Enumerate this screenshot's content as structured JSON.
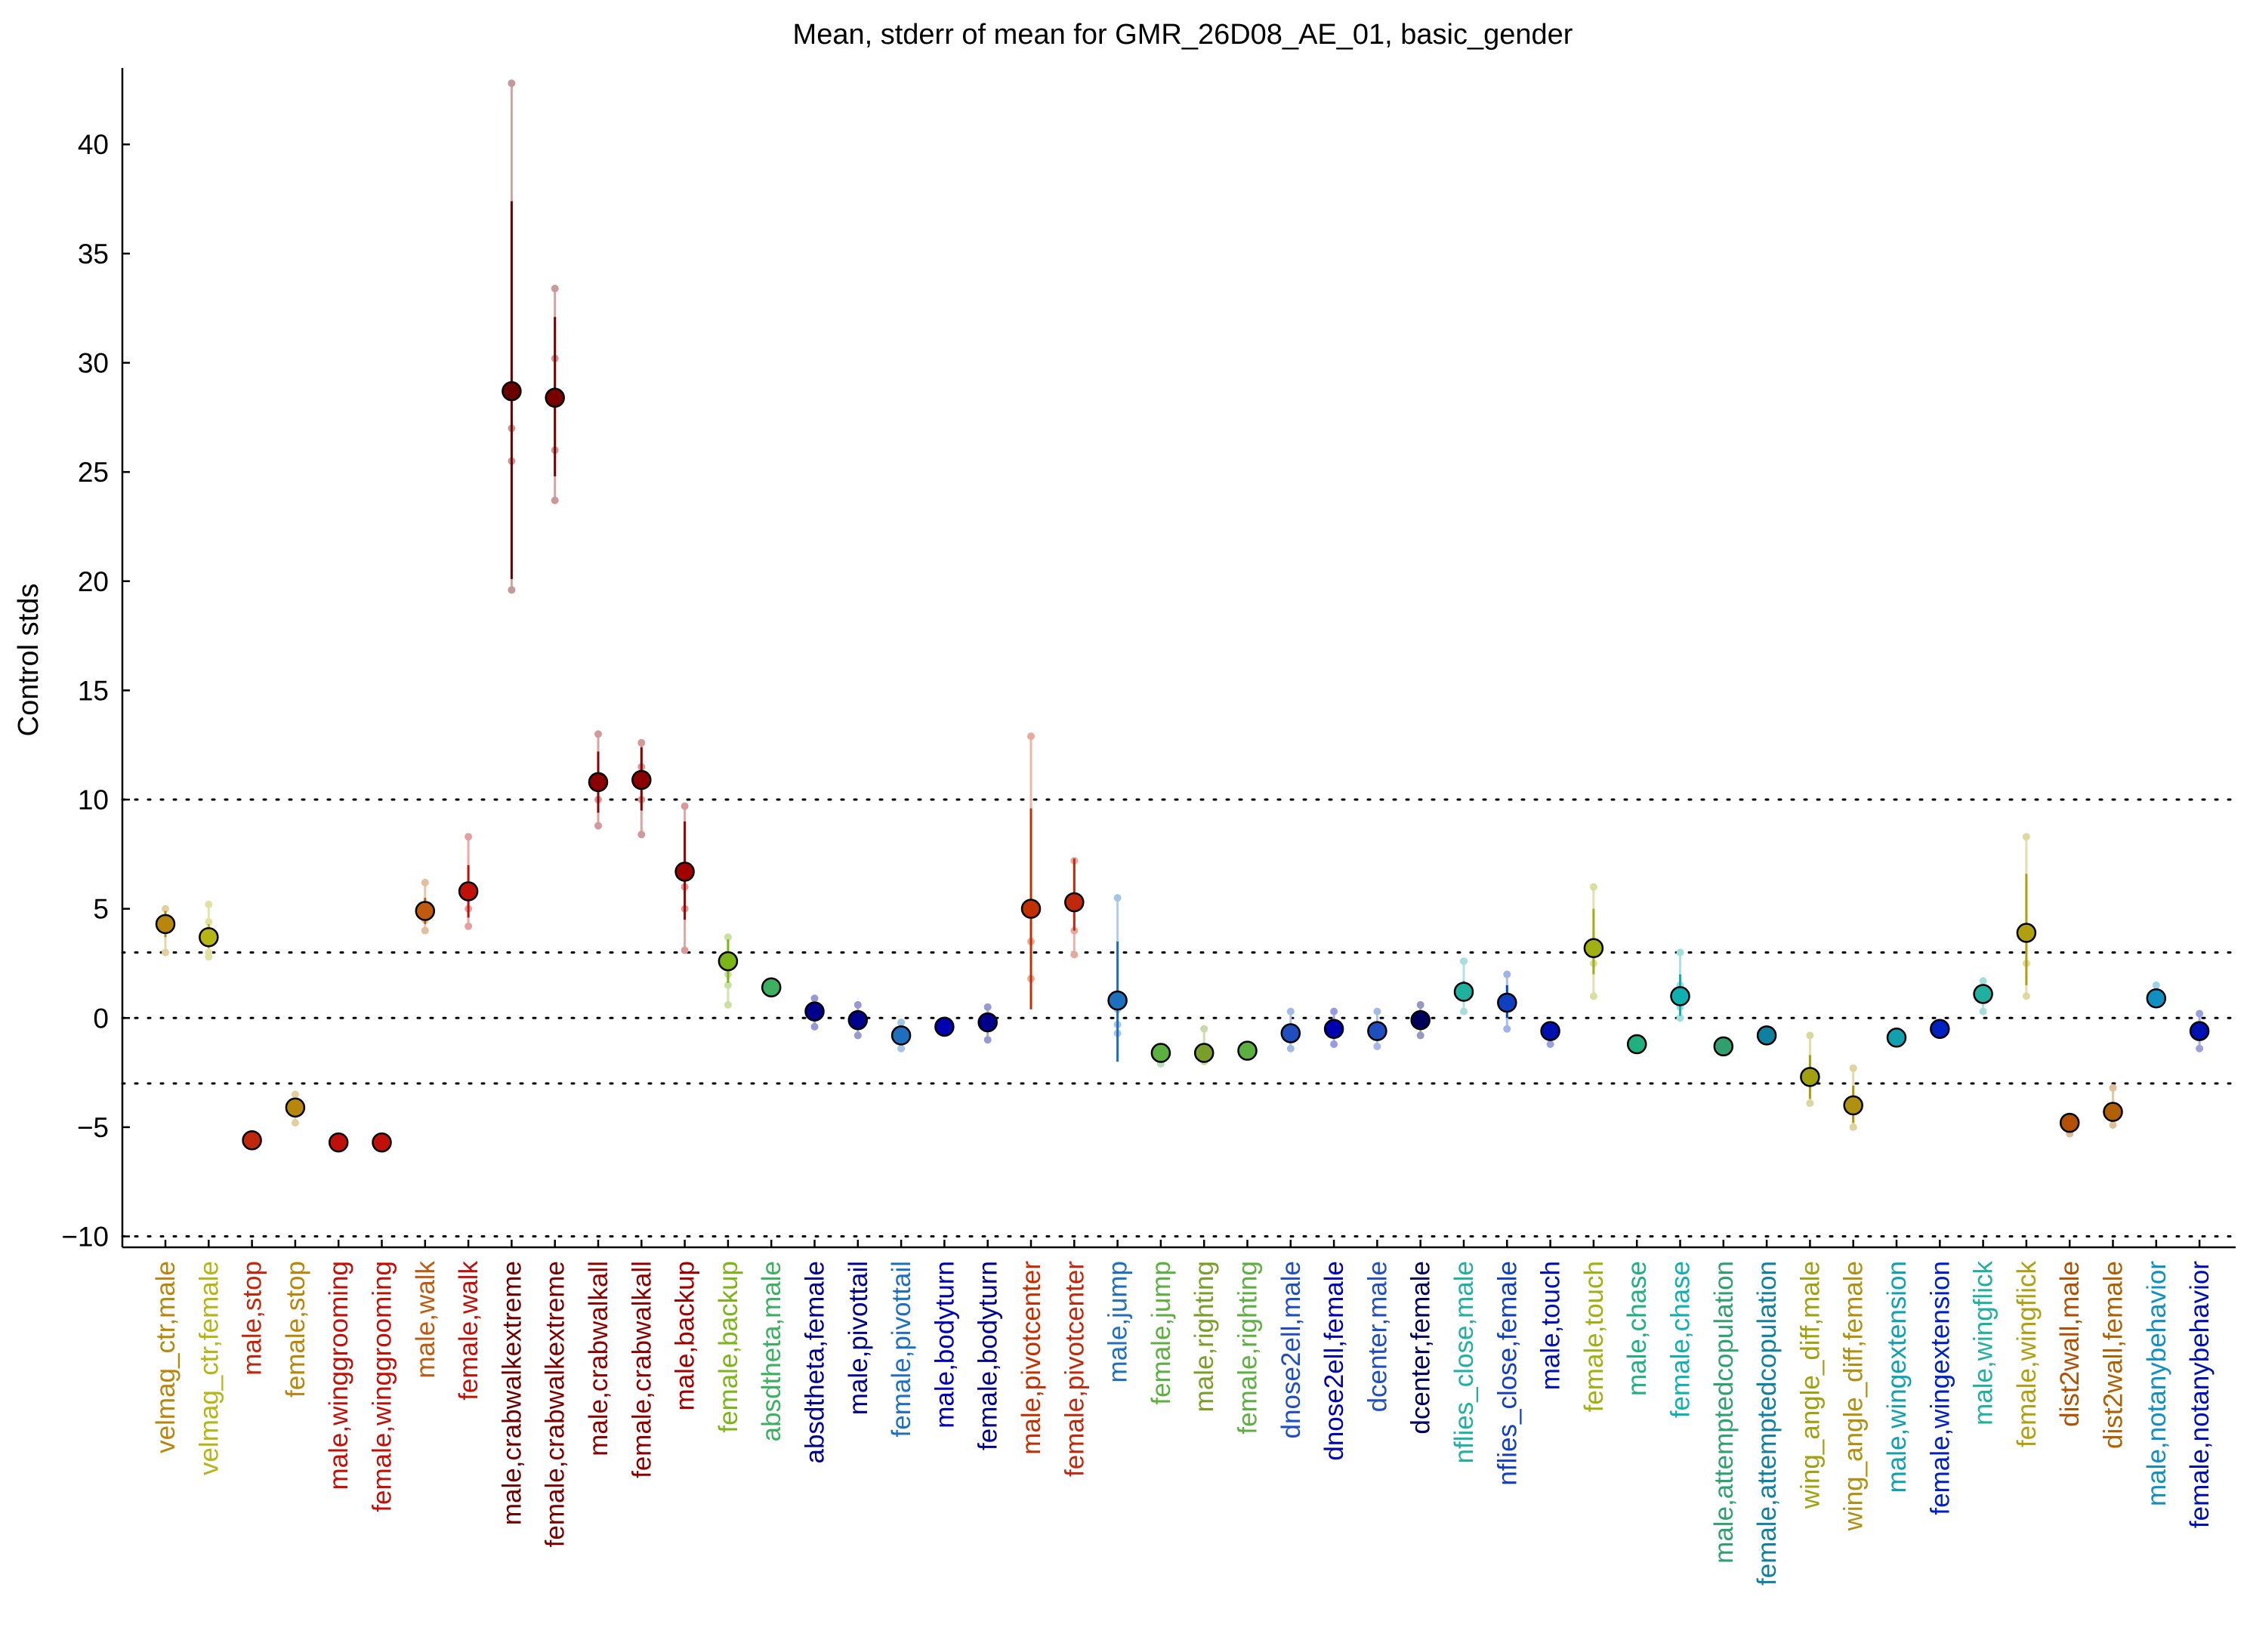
{
  "chart_data": {
    "type": "scatter",
    "title": "Mean, stderr of mean for GMR_26D08_AE_01, basic_gender",
    "ylabel": "Control stds",
    "xlabel": "",
    "ylim": [
      -10.5,
      43.5
    ],
    "yticks": [
      -10,
      -5,
      0,
      5,
      10,
      15,
      20,
      25,
      30,
      35,
      40
    ],
    "reference_lines": [
      -10,
      -3,
      0,
      3,
      10
    ],
    "grid": false,
    "legend": "none",
    "points": [
      {
        "label": "velmag_ctr,male",
        "mean": 4.3,
        "sem_low": 3.7,
        "sem_high": 4.9,
        "ind": [
          5.0,
          4.5,
          4.0,
          3.0
        ],
        "color": "#b8860b"
      },
      {
        "label": "velmag_ctr,female",
        "mean": 3.7,
        "sem_low": 3.2,
        "sem_high": 4.3,
        "ind": [
          5.2,
          4.4,
          3.0,
          2.8
        ],
        "color": "#b5b515"
      },
      {
        "label": "male,stop",
        "mean": -5.6,
        "sem_low": -5.8,
        "sem_high": -5.4,
        "ind": [
          -5.4,
          -5.8
        ],
        "color": "#c0280e"
      },
      {
        "label": "female,stop",
        "mean": -4.1,
        "sem_low": -4.5,
        "sem_high": -3.7,
        "ind": [
          -3.5,
          -4.8
        ],
        "color": "#b8860b"
      },
      {
        "label": "male,winggrooming",
        "mean": -5.7,
        "sem_low": -5.8,
        "sem_high": -5.6,
        "ind": [],
        "color": "#c0100a"
      },
      {
        "label": "female,winggrooming",
        "mean": -5.7,
        "sem_low": -5.8,
        "sem_high": -5.6,
        "ind": [],
        "color": "#c0100a"
      },
      {
        "label": "male,walk",
        "mean": 4.9,
        "sem_low": 4.3,
        "sem_high": 5.5,
        "ind": [
          6.2,
          5.2,
          4.5,
          4.0
        ],
        "color": "#c05a0e"
      },
      {
        "label": "female,walk",
        "mean": 5.8,
        "sem_low": 4.6,
        "sem_high": 7.0,
        "ind": [
          8.3,
          6.0,
          5.0,
          4.2
        ],
        "color": "#c0100a"
      },
      {
        "label": "male,crabwalkextreme",
        "mean": 28.7,
        "sem_low": 20.1,
        "sem_high": 37.4,
        "ind": [
          42.8,
          27.0,
          25.5,
          19.6
        ],
        "color": "#6b0000"
      },
      {
        "label": "female,crabwalkextreme",
        "mean": 28.4,
        "sem_low": 24.8,
        "sem_high": 32.1,
        "ind": [
          33.4,
          30.2,
          26.0,
          23.7
        ],
        "color": "#7a0000"
      },
      {
        "label": "male,crabwalkall",
        "mean": 10.8,
        "sem_low": 9.4,
        "sem_high": 12.2,
        "ind": [
          13.0,
          11.0,
          10.0,
          8.8
        ],
        "color": "#8b0000"
      },
      {
        "label": "female,crabwalkall",
        "mean": 10.9,
        "sem_low": 9.5,
        "sem_high": 12.4,
        "ind": [
          12.6,
          11.5,
          10.0,
          8.4
        ],
        "color": "#8b0000"
      },
      {
        "label": "male,backup",
        "mean": 6.7,
        "sem_low": 4.5,
        "sem_high": 9.0,
        "ind": [
          9.7,
          6.0,
          5.0,
          3.1
        ],
        "color": "#a00000"
      },
      {
        "label": "female,backup",
        "mean": 2.6,
        "sem_low": 1.6,
        "sem_high": 3.6,
        "ind": [
          3.7,
          2.0,
          1.5,
          0.6
        ],
        "color": "#7cb518"
      },
      {
        "label": "absdtheta,male",
        "mean": 1.4,
        "sem_low": 1.2,
        "sem_high": 1.6,
        "ind": [],
        "color": "#3cb060"
      },
      {
        "label": "absdtheta,female",
        "mean": 0.3,
        "sem_low": 0.0,
        "sem_high": 0.6,
        "ind": [
          0.9,
          -0.4
        ],
        "color": "#00008b"
      },
      {
        "label": "male,pivottail",
        "mean": -0.1,
        "sem_low": -0.4,
        "sem_high": 0.2,
        "ind": [
          0.6,
          -0.8
        ],
        "color": "#00008b"
      },
      {
        "label": "female,pivottail",
        "mean": -0.8,
        "sem_low": -1.1,
        "sem_high": -0.5,
        "ind": [
          -0.2,
          -1.4
        ],
        "color": "#1f6fbf"
      },
      {
        "label": "male,bodyturn",
        "mean": -0.4,
        "sem_low": -0.5,
        "sem_high": -0.3,
        "ind": [],
        "color": "#0000b0"
      },
      {
        "label": "female,bodyturn",
        "mean": -0.2,
        "sem_low": -0.5,
        "sem_high": 0.1,
        "ind": [
          0.5,
          -1.0
        ],
        "color": "#00008b"
      },
      {
        "label": "male,pivotcenter",
        "mean": 5.0,
        "sem_low": 0.4,
        "sem_high": 9.6,
        "ind": [
          12.9,
          5.0,
          3.5,
          1.8
        ],
        "color": "#c03000"
      },
      {
        "label": "female,pivotcenter",
        "mean": 5.3,
        "sem_low": 4.0,
        "sem_high": 7.3,
        "ind": [
          7.2,
          5.0,
          4.0,
          2.9
        ],
        "color": "#c0280e"
      },
      {
        "label": "male,jump",
        "mean": 0.8,
        "sem_low": -2.0,
        "sem_high": 3.5,
        "ind": [
          5.5,
          0.4,
          -0.3,
          -0.7
        ],
        "color": "#1f6fbf"
      },
      {
        "label": "female,jump",
        "mean": -1.6,
        "sem_low": -1.8,
        "sem_high": -1.4,
        "ind": [
          -2.1
        ],
        "color": "#5cb040"
      },
      {
        "label": "male,righting",
        "mean": -1.6,
        "sem_low": -1.9,
        "sem_high": -1.2,
        "ind": [
          -0.5,
          -2.0
        ],
        "color": "#7a9e2a"
      },
      {
        "label": "female,righting",
        "mean": -1.5,
        "sem_low": -1.6,
        "sem_high": -1.3,
        "ind": [],
        "color": "#5cb040"
      },
      {
        "label": "dnose2ell,male",
        "mean": -0.7,
        "sem_low": -1.0,
        "sem_high": -0.4,
        "ind": [
          0.3,
          -1.4
        ],
        "color": "#1f4fbf"
      },
      {
        "label": "dnose2ell,female",
        "mean": -0.5,
        "sem_low": -0.8,
        "sem_high": -0.2,
        "ind": [
          0.3,
          -1.2
        ],
        "color": "#0000b0"
      },
      {
        "label": "dcenter,male",
        "mean": -0.6,
        "sem_low": -0.9,
        "sem_high": -0.3,
        "ind": [
          0.3,
          -1.3
        ],
        "color": "#1f4fbf"
      },
      {
        "label": "dcenter,female",
        "mean": -0.1,
        "sem_low": -0.4,
        "sem_high": 0.2,
        "ind": [
          0.6,
          -0.8
        ],
        "color": "#00005a"
      },
      {
        "label": "nflies_close,male",
        "mean": 1.2,
        "sem_low": 0.8,
        "sem_high": 1.7,
        "ind": [
          2.6,
          0.3
        ],
        "color": "#20b0a0"
      },
      {
        "label": "nflies_close,female",
        "mean": 0.7,
        "sem_low": 0.0,
        "sem_high": 1.5,
        "ind": [
          2.0,
          -0.5
        ],
        "color": "#1040c0"
      },
      {
        "label": "male,touch",
        "mean": -0.6,
        "sem_low": -0.8,
        "sem_high": -0.3,
        "ind": [
          -1.2
        ],
        "color": "#0010b0"
      },
      {
        "label": "female,touch",
        "mean": 3.2,
        "sem_low": 2.0,
        "sem_high": 5.0,
        "ind": [
          6.0,
          3.5,
          2.5,
          1.0
        ],
        "color": "#a0b010"
      },
      {
        "label": "male,chase",
        "mean": -1.2,
        "sem_low": -1.3,
        "sem_high": -1.1,
        "ind": [],
        "color": "#20b080"
      },
      {
        "label": "female,chase",
        "mean": 1.0,
        "sem_low": 0.1,
        "sem_high": 2.0,
        "ind": [
          3.0,
          1.5,
          0.5,
          0.0
        ],
        "color": "#10b0b0"
      },
      {
        "label": "male,attemptedcopulation",
        "mean": -1.3,
        "sem_low": -1.4,
        "sem_high": -1.2,
        "ind": [],
        "color": "#30a070"
      },
      {
        "label": "female,attemptedcopulation",
        "mean": -0.8,
        "sem_low": -1.0,
        "sem_high": -0.6,
        "ind": [],
        "color": "#1080a0"
      },
      {
        "label": "wing_angle_diff,male",
        "mean": -2.7,
        "sem_low": -3.7,
        "sem_high": -1.7,
        "ind": [
          -0.8,
          -3.9
        ],
        "color": "#a0a010"
      },
      {
        "label": "wing_angle_diff,female",
        "mean": -4.0,
        "sem_low": -4.8,
        "sem_high": -3.1,
        "ind": [
          -2.3,
          -5.0
        ],
        "color": "#b09010"
      },
      {
        "label": "male,wingextension",
        "mean": -0.9,
        "sem_low": -1.0,
        "sem_high": -0.8,
        "ind": [],
        "color": "#10a0b0"
      },
      {
        "label": "female,wingextension",
        "mean": -0.5,
        "sem_low": -0.6,
        "sem_high": -0.4,
        "ind": [],
        "color": "#0020c0"
      },
      {
        "label": "male,wingflick",
        "mean": 1.1,
        "sem_low": 0.7,
        "sem_high": 1.5,
        "ind": [
          1.7,
          0.3
        ],
        "color": "#20b0a0"
      },
      {
        "label": "female,wingflick",
        "mean": 3.9,
        "sem_low": 1.5,
        "sem_high": 6.6,
        "ind": [
          8.3,
          4.0,
          2.5,
          1.0
        ],
        "color": "#b0a010"
      },
      {
        "label": "dist2wall,male",
        "mean": -4.8,
        "sem_low": -5.1,
        "sem_high": -4.5,
        "ind": [
          -5.3
        ],
        "color": "#b05000"
      },
      {
        "label": "dist2wall,female",
        "mean": -4.3,
        "sem_low": -4.7,
        "sem_high": -3.9,
        "ind": [
          -3.2,
          -4.9
        ],
        "color": "#b06000"
      },
      {
        "label": "male,notanybehavior",
        "mean": 0.9,
        "sem_low": 0.6,
        "sem_high": 1.2,
        "ind": [
          1.5
        ],
        "color": "#1090c0"
      },
      {
        "label": "female,notanybehavior",
        "mean": -0.6,
        "sem_low": -1.0,
        "sem_high": -0.2,
        "ind": [
          0.2,
          -1.4
        ],
        "color": "#0010b0"
      }
    ]
  }
}
